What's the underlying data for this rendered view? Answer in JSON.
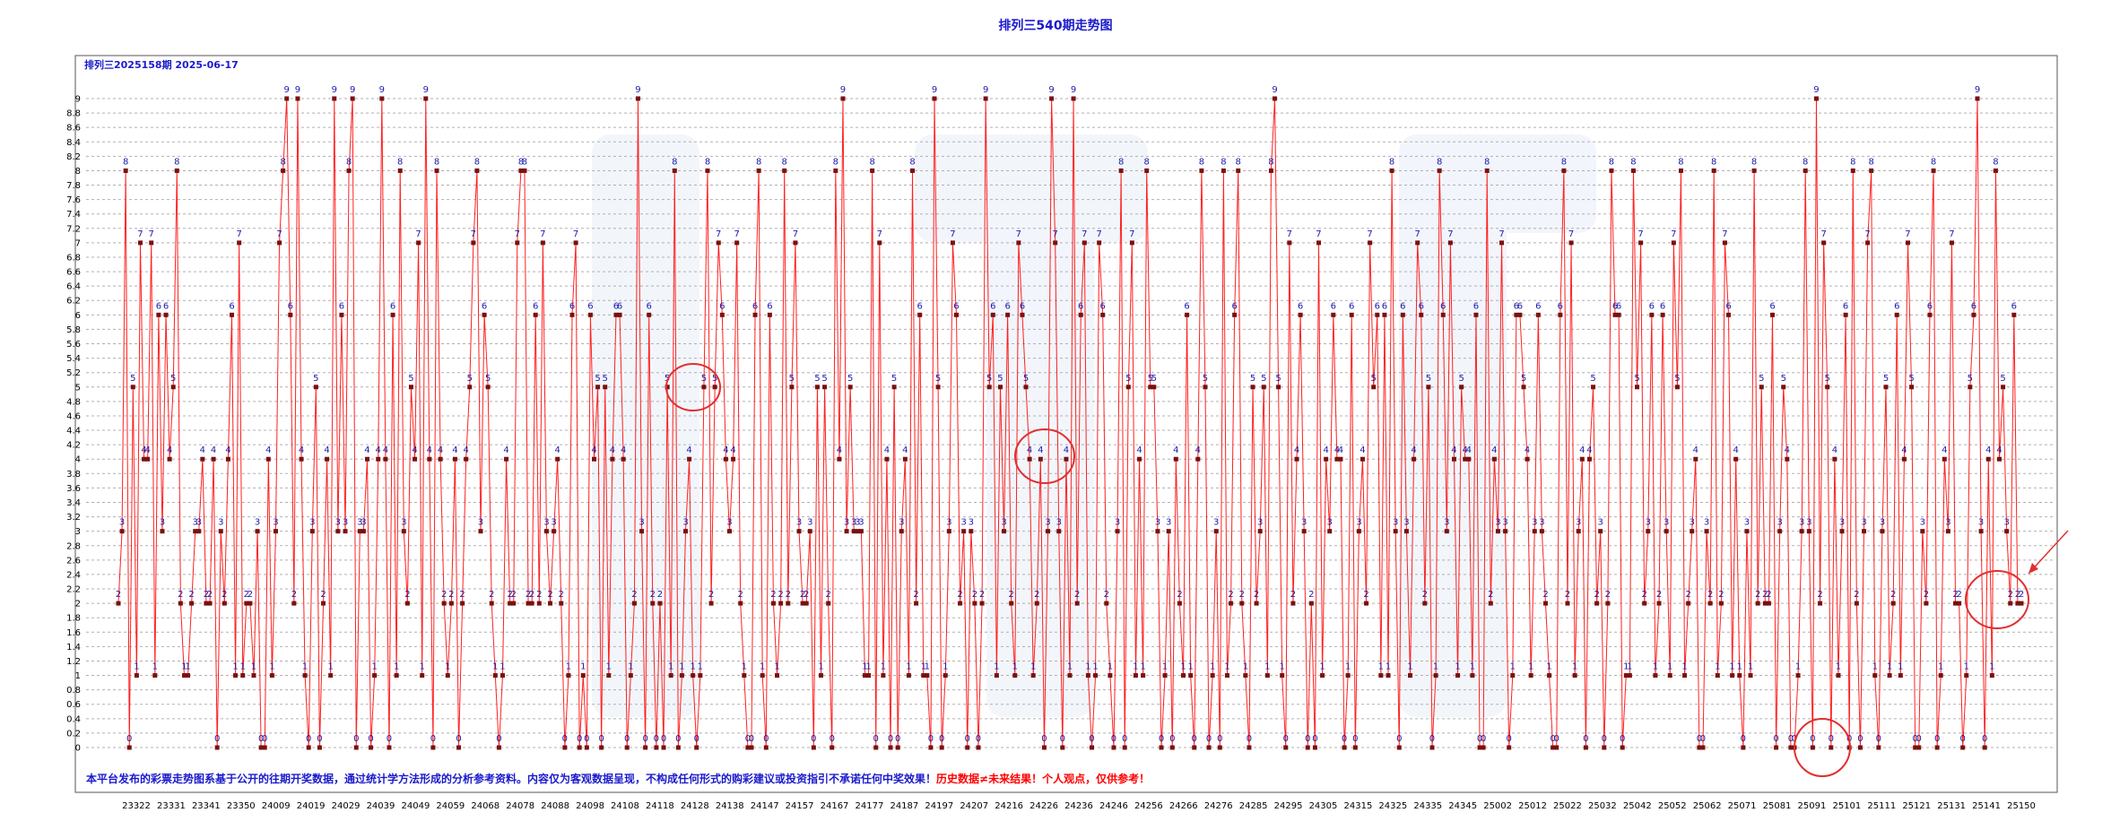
{
  "title": "排列三540期走势图",
  "subtitle": "排列三2025158期 2025-06-17",
  "notice": {
    "part1": "本平台发布的彩票走势图系基于公开的往期开奖数据，通过统计学方法形成的分析参考资料。内容仅为客观数据呈现，不构成任何形式的购彩建议或投资指引不承诺任何中奖效果！",
    "part2": "历史数据≠未来结果！个人观点，仅供参考！",
    "color1": "#1a1acc",
    "color2": "#ff0000"
  },
  "colors": {
    "line": "#ff2020",
    "marker": "#7a1010",
    "label": "#1a1aaa",
    "grid": "#b0b0b0",
    "annotation": "#e03030",
    "watermark": "#e8eef8"
  },
  "chart_data": {
    "type": "line",
    "title": "排列三540期走势图",
    "subtitle": "排列三2025158期 2025-06-17",
    "xlabel": "",
    "ylabel": "",
    "ylim": [
      0,
      9
    ],
    "yticks": [
      "0",
      "0.2",
      "0.4",
      "0.6",
      "0.8",
      "1",
      "1.2",
      "1.4",
      "1.6",
      "1.8",
      "2",
      "2.2",
      "2.4",
      "2.6",
      "2.8",
      "3",
      "3.2",
      "3.4",
      "3.6",
      "3.8",
      "4",
      "4.2",
      "4.4",
      "4.6",
      "4.8",
      "5",
      "5.2",
      "5.4",
      "5.6",
      "5.8",
      "6",
      "6.2",
      "6.4",
      "6.6",
      "6.8",
      "7",
      "7.2",
      "7.4",
      "7.6",
      "7.8",
      "8",
      "8.2",
      "8.4",
      "8.6",
      "8.8",
      "9"
    ],
    "grid": true,
    "x_tick_labels": [
      "23322",
      "23331",
      "23341",
      "23350",
      "24009",
      "24019",
      "24029",
      "24039",
      "24049",
      "24059",
      "24068",
      "24078",
      "24088",
      "24098",
      "24108",
      "24118",
      "24128",
      "24138",
      "24147",
      "24157",
      "24167",
      "24177",
      "24187",
      "24197",
      "24207",
      "24216",
      "24226",
      "24236",
      "24246",
      "24256",
      "24266",
      "24276",
      "24285",
      "24295",
      "24305",
      "24315",
      "24325",
      "24335",
      "24345",
      "25002",
      "25012",
      "25022",
      "25032",
      "25042",
      "25052",
      "25062",
      "25071",
      "25081",
      "25091",
      "25101",
      "25111",
      "25121",
      "25131",
      "25141",
      "25150"
    ],
    "series": [
      {
        "values": [
          2,
          3,
          8,
          0,
          5,
          1,
          7,
          4,
          4,
          7,
          1,
          6,
          3,
          6,
          4,
          5,
          8,
          2,
          1,
          1,
          2,
          3,
          3,
          4,
          2,
          2,
          4,
          0,
          3,
          2,
          4,
          6,
          1,
          7,
          1,
          2,
          2,
          1,
          3,
          0,
          0,
          4,
          1,
          3,
          7,
          8,
          9,
          6,
          2,
          9,
          4,
          1,
          0,
          3,
          5,
          0,
          2,
          4,
          1,
          9,
          3,
          6,
          3,
          8,
          9,
          0,
          3,
          3,
          4,
          0,
          1,
          4,
          9,
          4,
          0,
          6,
          1,
          8,
          3,
          2,
          5,
          4,
          7,
          1,
          9,
          4,
          0,
          8,
          4,
          2,
          1,
          2,
          4,
          0,
          2,
          4,
          5,
          7,
          8,
          3,
          6,
          5,
          2,
          1,
          0,
          1,
          4,
          2,
          2,
          7,
          8,
          8,
          2,
          2,
          6,
          2,
          7,
          3,
          2,
          3,
          4,
          2,
          0,
          1,
          6,
          7,
          0,
          1,
          0,
          6,
          4,
          5,
          0,
          5,
          1,
          4,
          6,
          6,
          4,
          0,
          1,
          2,
          9,
          3,
          0,
          6,
          2,
          0,
          2,
          0,
          5,
          1,
          8,
          0,
          1,
          3,
          4,
          1,
          0,
          1,
          5,
          8,
          2,
          5,
          7,
          6,
          4,
          3,
          4,
          7,
          2,
          1,
          0,
          0,
          6,
          8,
          1,
          0,
          6,
          2,
          1,
          2,
          8,
          2,
          5,
          7,
          3,
          2,
          2,
          3,
          0,
          5,
          1,
          5,
          2,
          0,
          8,
          4,
          9,
          3,
          5,
          3,
          3,
          3,
          1,
          1,
          8,
          0,
          7,
          1,
          4,
          0,
          5,
          0,
          3,
          4,
          1,
          8,
          2,
          6,
          1,
          1,
          0,
          9,
          5,
          0,
          1,
          3,
          7,
          6,
          2,
          3,
          0,
          3,
          2,
          0,
          2,
          9,
          5,
          6,
          1,
          5,
          3,
          6,
          2,
          1,
          7,
          6,
          5,
          4,
          1,
          2,
          4,
          0,
          3,
          9,
          7,
          3,
          0,
          4,
          1,
          9,
          2,
          6,
          7,
          1,
          0,
          1,
          7,
          6,
          2,
          1,
          0,
          3,
          8,
          0,
          5,
          7,
          1,
          4,
          1,
          8,
          5,
          5,
          3,
          0,
          1,
          3,
          0,
          4,
          2,
          1,
          6,
          1,
          0,
          4,
          8,
          5,
          0,
          1,
          3,
          0,
          8,
          1,
          2,
          6,
          8,
          2,
          1,
          0,
          5,
          2,
          3,
          5,
          1,
          8,
          9,
          5,
          1,
          0,
          7,
          2,
          4,
          6,
          3,
          0,
          2,
          0,
          7,
          1,
          4,
          3,
          6,
          4,
          4,
          0,
          1,
          6,
          0,
          3,
          4,
          2,
          7,
          5,
          6,
          1,
          6,
          1,
          8,
          3,
          0,
          6,
          3,
          1,
          4,
          7,
          6,
          2,
          5,
          0,
          1,
          8,
          6,
          3,
          7,
          4,
          1,
          5,
          4,
          4,
          1,
          6,
          0,
          0,
          8,
          2,
          4,
          3,
          7,
          3,
          0,
          1,
          6,
          6,
          5,
          4,
          1,
          3,
          6,
          3,
          2,
          1,
          0,
          0,
          6,
          8,
          2,
          7,
          1,
          3,
          4,
          0,
          4,
          5,
          2,
          3,
          0,
          2,
          8,
          6,
          6,
          0,
          1,
          1,
          8,
          5,
          7,
          2,
          3,
          6,
          1,
          2,
          6,
          3,
          1,
          7,
          5,
          8,
          1,
          2,
          3,
          4,
          0,
          0,
          3,
          2,
          8,
          1,
          2,
          7,
          6,
          1,
          4,
          1,
          0,
          3,
          1,
          8,
          2,
          5,
          2,
          2,
          6,
          0,
          3,
          5,
          4,
          0,
          0,
          1,
          3,
          8,
          3,
          0,
          9,
          2,
          7,
          5,
          0,
          4,
          1,
          3,
          6,
          0,
          8,
          2,
          0,
          3,
          7,
          8,
          1,
          0,
          3,
          5,
          1,
          2,
          6,
          1,
          4,
          7,
          5,
          0,
          0,
          3,
          2,
          6,
          8,
          0,
          1,
          4,
          3,
          7,
          2,
          2,
          0,
          1,
          5,
          6,
          9,
          3,
          0,
          4,
          1,
          8,
          4,
          5,
          3,
          2,
          6,
          2,
          2
        ],
        "color": "#ff2020"
      }
    ],
    "annotations": [
      {
        "type": "circle",
        "note": "repeated 5"
      },
      {
        "type": "circle",
        "note": "repeated 4"
      },
      {
        "type": "circle",
        "note": "repeated 0"
      },
      {
        "type": "circle",
        "note": "repeated 2"
      },
      {
        "type": "arrow",
        "note": "latest"
      }
    ]
  }
}
